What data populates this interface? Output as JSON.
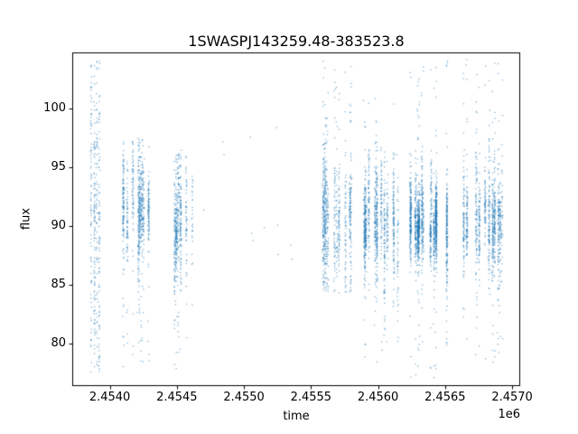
{
  "chart_data": {
    "type": "scatter",
    "title": "1SWASPJ143259.48-383523.8",
    "xlabel": "time",
    "ylabel": "flux",
    "x_offset": "1e6",
    "xlim": [
      2453720,
      2457060
    ],
    "ylim": [
      76.4,
      104.8
    ],
    "xticks": {
      "values": [
        2454000,
        2454500,
        2455000,
        2455500,
        2456000,
        2456500,
        2457000
      ],
      "labels": [
        "2.4540",
        "2.4545",
        "2.4550",
        "2.4555",
        "2.4560",
        "2.4565",
        "2.4570"
      ]
    },
    "yticks": {
      "values": [
        80,
        85,
        90,
        95,
        100
      ],
      "labels": [
        "80",
        "85",
        "90",
        "95",
        "100"
      ]
    },
    "grid": false,
    "legend": false,
    "marker_color": "#1f77b4",
    "marker_alpha": 0.55,
    "marker_size_px": 1.3,
    "seed": 7,
    "clusters": [
      {
        "x0": 2453860,
        "x1": 2453935,
        "columns": 4,
        "points": 340,
        "y_mean": 91.0,
        "y_sigma": 6.0,
        "y_min": 77.5,
        "y_max": 104.2,
        "tail_frac": 0.5
      },
      {
        "x0": 2454090,
        "x1": 2454290,
        "columns": 12,
        "points": 900,
        "y_mean": 91.2,
        "y_sigma": 2.3,
        "y_min": 78.0,
        "y_max": 97.5,
        "tail_frac": 0.1
      },
      {
        "x0": 2454470,
        "x1": 2454630,
        "columns": 9,
        "points": 520,
        "y_mean": 90.2,
        "y_sigma": 2.0,
        "y_min": 77.8,
        "y_max": 96.5,
        "tail_frac": 0.08
      },
      {
        "x0": 2455590,
        "x1": 2455800,
        "columns": 13,
        "points": 820,
        "y_mean": 90.8,
        "y_sigma": 2.6,
        "y_min": 84.3,
        "y_max": 104.3,
        "tail_frac": 0.12
      },
      {
        "x0": 2455880,
        "x1": 2456150,
        "columns": 15,
        "points": 980,
        "y_mean": 90.3,
        "y_sigma": 2.3,
        "y_min": 78.0,
        "y_max": 101.0,
        "tail_frac": 0.08
      },
      {
        "x0": 2456240,
        "x1": 2456520,
        "columns": 17,
        "points": 1500,
        "y_mean": 90.4,
        "y_sigma": 1.8,
        "y_min": 77.0,
        "y_max": 104.3,
        "tail_frac": 0.07
      },
      {
        "x0": 2456600,
        "x1": 2456930,
        "columns": 17,
        "points": 1150,
        "y_mean": 91.0,
        "y_sigma": 2.4,
        "y_min": 77.3,
        "y_max": 104.2,
        "tail_frac": 0.09
      }
    ],
    "sparse_points": [
      [
        2454700,
        91.4
      ],
      [
        2454845,
        97.2
      ],
      [
        2454852,
        96.1
      ],
      [
        2455048,
        97.6
      ],
      [
        2455058,
        89.4
      ],
      [
        2455066,
        88.8
      ],
      [
        2455152,
        89.9
      ],
      [
        2455243,
        98.4
      ],
      [
        2455251,
        90.1
      ],
      [
        2455256,
        87.6
      ],
      [
        2455348,
        88.4
      ],
      [
        2455357,
        87.2
      ]
    ]
  }
}
